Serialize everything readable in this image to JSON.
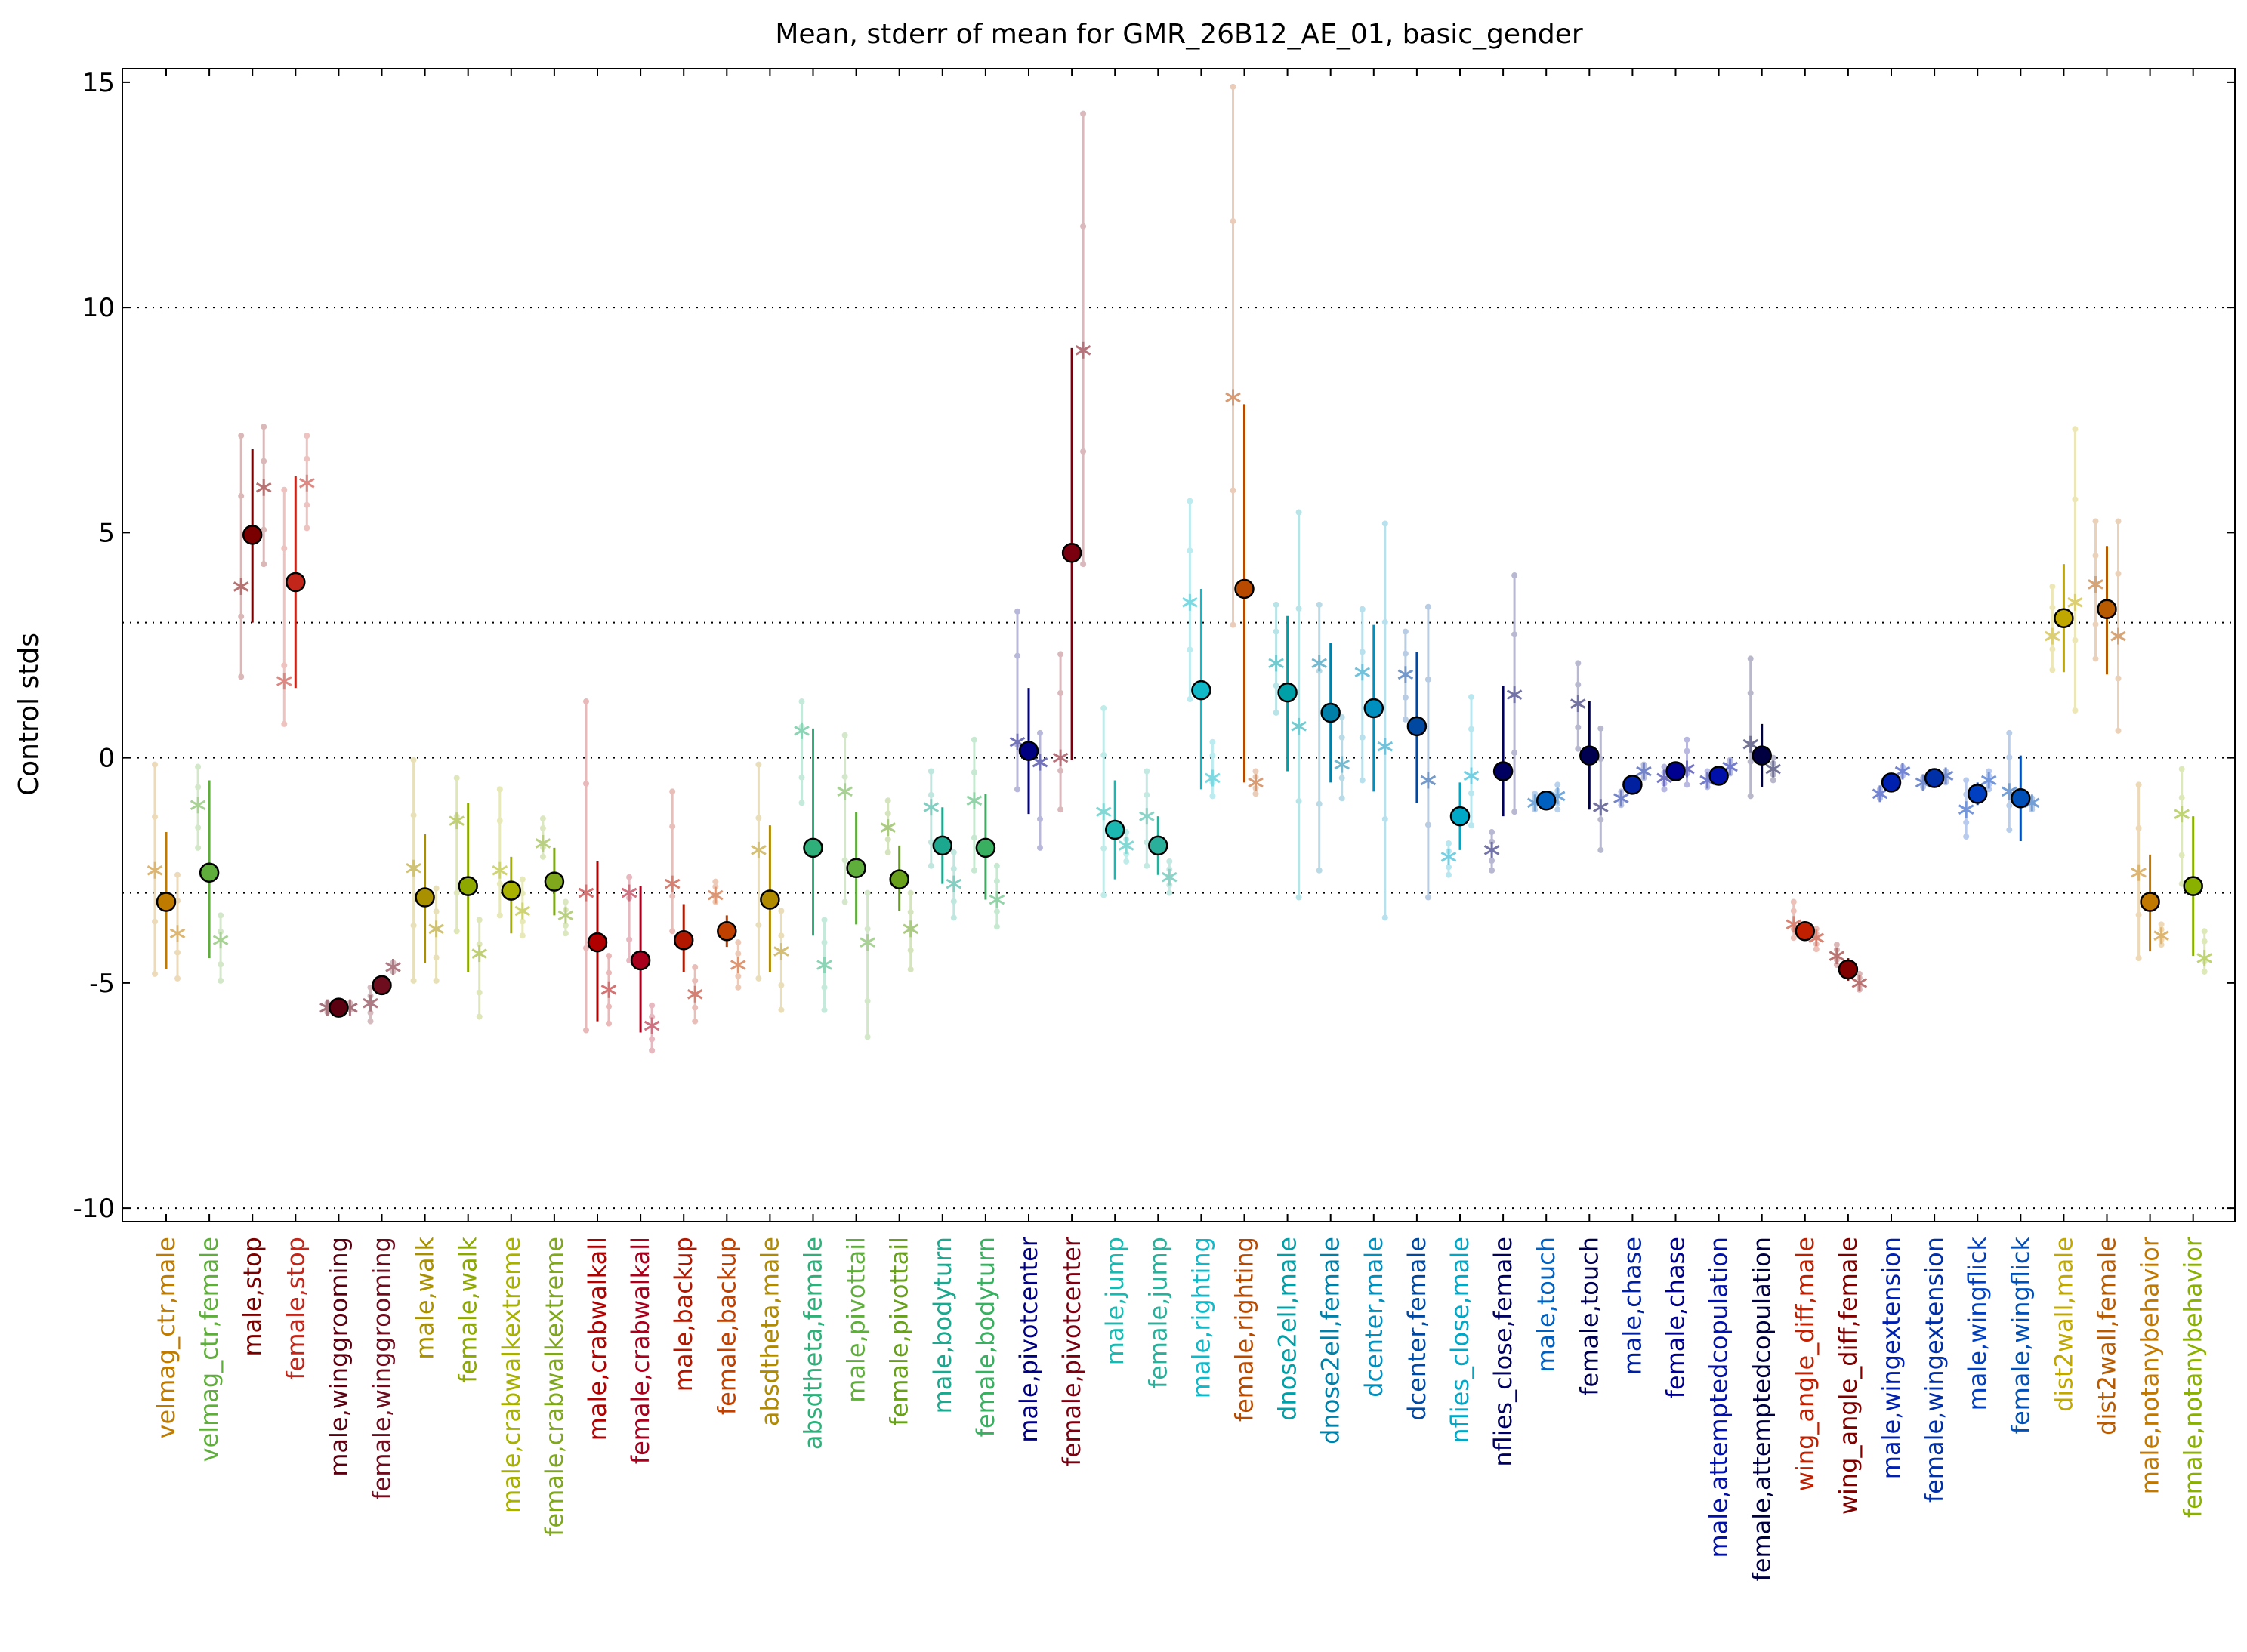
{
  "chart_data": {
    "type": "scatter",
    "title": "Mean, stderr of mean for GMR_26B12_AE_01, basic_gender",
    "ylabel": "Control stds",
    "xlabel": "",
    "ylim": [
      -10.3,
      15.3
    ],
    "yticks": [
      -10,
      -5,
      0,
      5,
      10,
      15
    ],
    "reference_lines": [
      -10,
      -3,
      0,
      3,
      10
    ],
    "grid": false,
    "categories": [
      "velmag_ctr,male",
      "velmag_ctr,female",
      "male,stop",
      "female,stop",
      "male,winggrooming",
      "female,winggrooming",
      "male,walk",
      "female,walk",
      "male,crabwalkextreme",
      "female,crabwalkextreme",
      "male,crabwalkall",
      "female,crabwalkall",
      "male,backup",
      "female,backup",
      "absdtheta,male",
      "absdtheta,female",
      "male,pivottail",
      "female,pivottail",
      "male,bodyturn",
      "female,bodyturn",
      "male,pivotcenter",
      "female,pivotcenter",
      "male,jump",
      "female,jump",
      "male,righting",
      "female,righting",
      "dnose2ell,male",
      "dnose2ell,female",
      "dcenter,male",
      "dcenter,female",
      "nflies_close,male",
      "nflies_close,female",
      "male,touch",
      "female,touch",
      "male,chase",
      "female,chase",
      "male,attemptedcopulation",
      "female,attemptedcopulation",
      "wing_angle_diff,male",
      "wing_angle_diff,female",
      "male,wingextension",
      "female,wingextension",
      "male,wingflick",
      "female,wingflick",
      "dist2wall,male",
      "dist2wall,female",
      "male,notanybehavior",
      "female,notanybehavior"
    ],
    "colors": [
      "#bf7a00",
      "#5fae3c",
      "#7a0000",
      "#c2261b",
      "#5a0010",
      "#6e0d1e",
      "#a89000",
      "#8ea800",
      "#a8b000",
      "#7fa81c",
      "#b00000",
      "#a8001c",
      "#b21800",
      "#c04000",
      "#b08a00",
      "#2fb07a",
      "#5fae3c",
      "#68a01c",
      "#1ca88e",
      "#38b060",
      "#000080",
      "#7a0010",
      "#1ab8b0",
      "#2ab09a",
      "#10b8c8",
      "#b84a00",
      "#00a0a8",
      "#0080a8",
      "#0090c0",
      "#0048a0",
      "#00a8c8",
      "#000060",
      "#0060c0",
      "#000050",
      "#0020a0",
      "#000090",
      "#0010a8",
      "#000040",
      "#c02000",
      "#800000",
      "#0020b0",
      "#0030a8",
      "#0040c0",
      "#0050b8",
      "#c0a800",
      "#b85a00",
      "#c07800",
      "#8ab000"
    ],
    "mean": [
      -3.2,
      -2.55,
      4.95,
      3.9,
      -5.55,
      -5.05,
      -3.1,
      -2.85,
      -2.95,
      -2.75,
      -4.1,
      -4.5,
      -4.05,
      -3.85,
      -3.15,
      -2.0,
      -2.45,
      -2.7,
      -1.95,
      -2.0,
      0.15,
      4.55,
      -1.6,
      -1.95,
      1.5,
      3.75,
      1.45,
      1.0,
      1.1,
      0.7,
      -1.3,
      -0.3,
      -0.95,
      0.05,
      -0.6,
      -0.3,
      -0.4,
      0.05,
      -3.85,
      -4.7,
      -0.55,
      -0.45,
      -0.8,
      -0.9,
      3.1,
      3.3,
      -3.2,
      -2.85
    ],
    "err_low": [
      -4.7,
      -4.45,
      3.0,
      1.55,
      -5.7,
      -5.2,
      -4.55,
      -4.75,
      -3.9,
      -3.5,
      -5.85,
      -6.1,
      -4.75,
      -4.2,
      -4.75,
      -3.95,
      -3.7,
      -3.4,
      -2.8,
      -3.15,
      -1.25,
      -0.05,
      -2.7,
      -2.6,
      -0.7,
      -0.55,
      -0.3,
      -0.55,
      -0.75,
      -1.0,
      -2.05,
      -1.3,
      -1.05,
      -1.15,
      -0.75,
      -0.4,
      -0.5,
      -0.65,
      -4.0,
      -4.95,
      -0.6,
      -0.55,
      -1.05,
      -1.85,
      1.9,
      1.85,
      -4.3,
      -4.4
    ],
    "err_high": [
      -1.65,
      -0.5,
      6.85,
      6.25,
      -5.45,
      -4.9,
      -1.7,
      -1.0,
      -2.2,
      -2.0,
      -2.3,
      -2.85,
      -3.25,
      -3.5,
      -1.5,
      0.65,
      -1.2,
      -1.95,
      -1.1,
      -0.8,
      1.55,
      9.1,
      -0.5,
      -1.3,
      3.75,
      7.85,
      3.15,
      2.55,
      2.95,
      2.35,
      -0.55,
      1.6,
      -0.85,
      1.25,
      -0.45,
      -0.2,
      -0.3,
      0.75,
      -3.7,
      -4.45,
      -0.5,
      -0.35,
      -0.55,
      0.05,
      4.3,
      4.7,
      -2.15,
      -1.3
    ],
    "star_values": [
      [
        -2.5,
        -3.9
      ],
      [
        -1.05,
        -4.05
      ],
      [
        3.8,
        6.0
      ],
      [
        1.7,
        6.1
      ],
      [
        -5.55,
        -5.55
      ],
      [
        -5.45,
        -4.65
      ],
      [
        -2.45,
        -3.8
      ],
      [
        -1.4,
        -4.35
      ],
      [
        -2.5,
        -3.4
      ],
      [
        -1.9,
        -3.5
      ],
      [
        -3.0,
        -5.15
      ],
      [
        -3.0,
        -5.95
      ],
      [
        -2.8,
        -5.25
      ],
      [
        -3.05,
        -4.6
      ],
      [
        -2.05,
        -4.3
      ],
      [
        0.6,
        -4.6
      ],
      [
        -0.75,
        -4.1
      ],
      [
        -1.55,
        -3.8
      ],
      [
        -1.1,
        -2.8
      ],
      [
        -0.95,
        -3.15
      ],
      [
        0.35,
        -0.1
      ],
      [
        0.0,
        9.05
      ],
      [
        -1.2,
        -1.95
      ],
      [
        -1.3,
        -2.65
      ],
      [
        3.45,
        -0.45
      ],
      [
        8.0,
        -0.55
      ],
      [
        2.1,
        0.7
      ],
      [
        2.1,
        -0.15
      ],
      [
        1.9,
        0.25
      ],
      [
        1.85,
        -0.5
      ],
      [
        -2.2,
        -0.4
      ],
      [
        -2.05,
        1.4
      ],
      [
        -1.0,
        -0.85
      ],
      [
        1.2,
        -1.1
      ],
      [
        -0.9,
        -0.3
      ],
      [
        -0.45,
        -0.25
      ],
      [
        -0.5,
        -0.2
      ],
      [
        0.3,
        -0.25
      ],
      [
        -3.7,
        -4.0
      ],
      [
        -4.4,
        -5.0
      ],
      [
        -0.8,
        -0.3
      ],
      [
        -0.55,
        -0.4
      ],
      [
        -1.15,
        -0.5
      ],
      [
        -0.75,
        -1.0
      ],
      [
        2.7,
        3.45
      ],
      [
        3.85,
        2.7
      ],
      [
        -2.55,
        -3.95
      ],
      [
        -1.25,
        -4.45
      ]
    ],
    "star_ranges": [
      [
        [
          -4.8,
          -0.15
        ],
        [
          -4.9,
          -2.6
        ]
      ],
      [
        [
          -2.0,
          -0.2
        ],
        [
          -4.95,
          -3.5
        ]
      ],
      [
        [
          1.8,
          7.15
        ],
        [
          4.3,
          7.35
        ]
      ],
      [
        [
          0.75,
          5.95
        ],
        [
          5.1,
          7.15
        ]
      ],
      [
        [
          -5.65,
          -5.45
        ],
        [
          -5.6,
          -5.45
        ]
      ],
      [
        [
          -5.85,
          -5.1
        ],
        [
          -4.75,
          -4.55
        ]
      ],
      [
        [
          -4.95,
          -0.05
        ],
        [
          -4.95,
          -2.9
        ]
      ],
      [
        [
          -3.85,
          -0.45
        ],
        [
          -5.75,
          -3.6
        ]
      ],
      [
        [
          -3.5,
          -0.7
        ],
        [
          -3.95,
          -2.7
        ]
      ],
      [
        [
          -2.2,
          -1.35
        ],
        [
          -3.9,
          -3.2
        ]
      ],
      [
        [
          -6.05,
          1.25
        ],
        [
          -5.9,
          -4.4
        ]
      ],
      [
        [
          -4.5,
          -2.65
        ],
        [
          -6.5,
          -5.5
        ]
      ],
      [
        [
          -3.85,
          -0.75
        ],
        [
          -5.85,
          -4.65
        ]
      ],
      [
        [
          -3.2,
          -2.75
        ],
        [
          -5.1,
          -4.1
        ]
      ],
      [
        [
          -4.9,
          -0.15
        ],
        [
          -5.6,
          -3.4
        ]
      ],
      [
        [
          -1.0,
          1.25
        ],
        [
          -5.6,
          -3.6
        ]
      ],
      [
        [
          -3.2,
          0.5
        ],
        [
          -6.2,
          -3.0
        ]
      ],
      [
        [
          -2.1,
          -0.95
        ],
        [
          -4.7,
          -3.0
        ]
      ],
      [
        [
          -2.4,
          -0.3
        ],
        [
          -3.55,
          -2.1
        ]
      ],
      [
        [
          -2.5,
          0.4
        ],
        [
          -3.75,
          -2.4
        ]
      ],
      [
        [
          -0.7,
          3.25
        ],
        [
          -2.0,
          0.55
        ]
      ],
      [
        [
          -1.15,
          2.3
        ],
        [
          4.3,
          14.3
        ]
      ],
      [
        [
          -3.05,
          1.1
        ],
        [
          -2.3,
          -1.65
        ]
      ],
      [
        [
          -2.4,
          -0.3
        ],
        [
          -3.0,
          -2.3
        ]
      ],
      [
        [
          1.3,
          5.7
        ],
        [
          -0.85,
          0.35
        ]
      ],
      [
        [
          2.95,
          14.9
        ],
        [
          -0.8,
          -0.3
        ]
      ],
      [
        [
          1.0,
          3.4
        ],
        [
          -3.1,
          5.45
        ]
      ],
      [
        [
          -2.5,
          3.4
        ],
        [
          -0.9,
          0.9
        ]
      ],
      [
        [
          -0.5,
          3.3
        ],
        [
          -3.55,
          5.2
        ]
      ],
      [
        [
          0.85,
          2.8
        ],
        [
          -3.1,
          3.35
        ]
      ],
      [
        [
          -2.6,
          -1.9
        ],
        [
          -1.5,
          1.35
        ]
      ],
      [
        [
          -2.5,
          -1.65
        ],
        [
          -1.2,
          4.05
        ]
      ],
      [
        [
          -1.15,
          -0.8
        ],
        [
          -1.15,
          -0.6
        ]
      ],
      [
        [
          0.2,
          2.1
        ],
        [
          -2.05,
          0.65
        ]
      ],
      [
        [
          -1.05,
          -0.75
        ],
        [
          -0.45,
          -0.15
        ]
      ],
      [
        [
          -0.7,
          -0.2
        ],
        [
          -0.6,
          0.4
        ]
      ],
      [
        [
          -0.65,
          -0.3
        ],
        [
          -0.35,
          -0.05
        ]
      ],
      [
        [
          -0.85,
          2.2
        ],
        [
          -0.5,
          0.0
        ]
      ],
      [
        [
          -4.0,
          -3.2
        ],
        [
          -4.25,
          -3.8
        ]
      ],
      [
        [
          -4.6,
          -4.15
        ],
        [
          -5.15,
          -4.8
        ]
      ],
      [
        [
          -0.9,
          -0.7
        ],
        [
          -0.4,
          -0.2
        ]
      ],
      [
        [
          -0.65,
          -0.45
        ],
        [
          -0.55,
          -0.3
        ]
      ],
      [
        [
          -1.75,
          -0.5
        ],
        [
          -0.7,
          -0.3
        ]
      ],
      [
        [
          -1.6,
          0.55
        ],
        [
          -1.15,
          -0.9
        ]
      ],
      [
        [
          1.95,
          3.8
        ],
        [
          1.05,
          7.3
        ]
      ],
      [
        [
          2.2,
          5.25
        ],
        [
          0.6,
          5.25
        ]
      ],
      [
        [
          -4.45,
          -0.6
        ],
        [
          -4.15,
          -3.7
        ]
      ],
      [
        [
          -2.8,
          -0.25
        ],
        [
          -4.75,
          -3.85
        ]
      ]
    ]
  }
}
